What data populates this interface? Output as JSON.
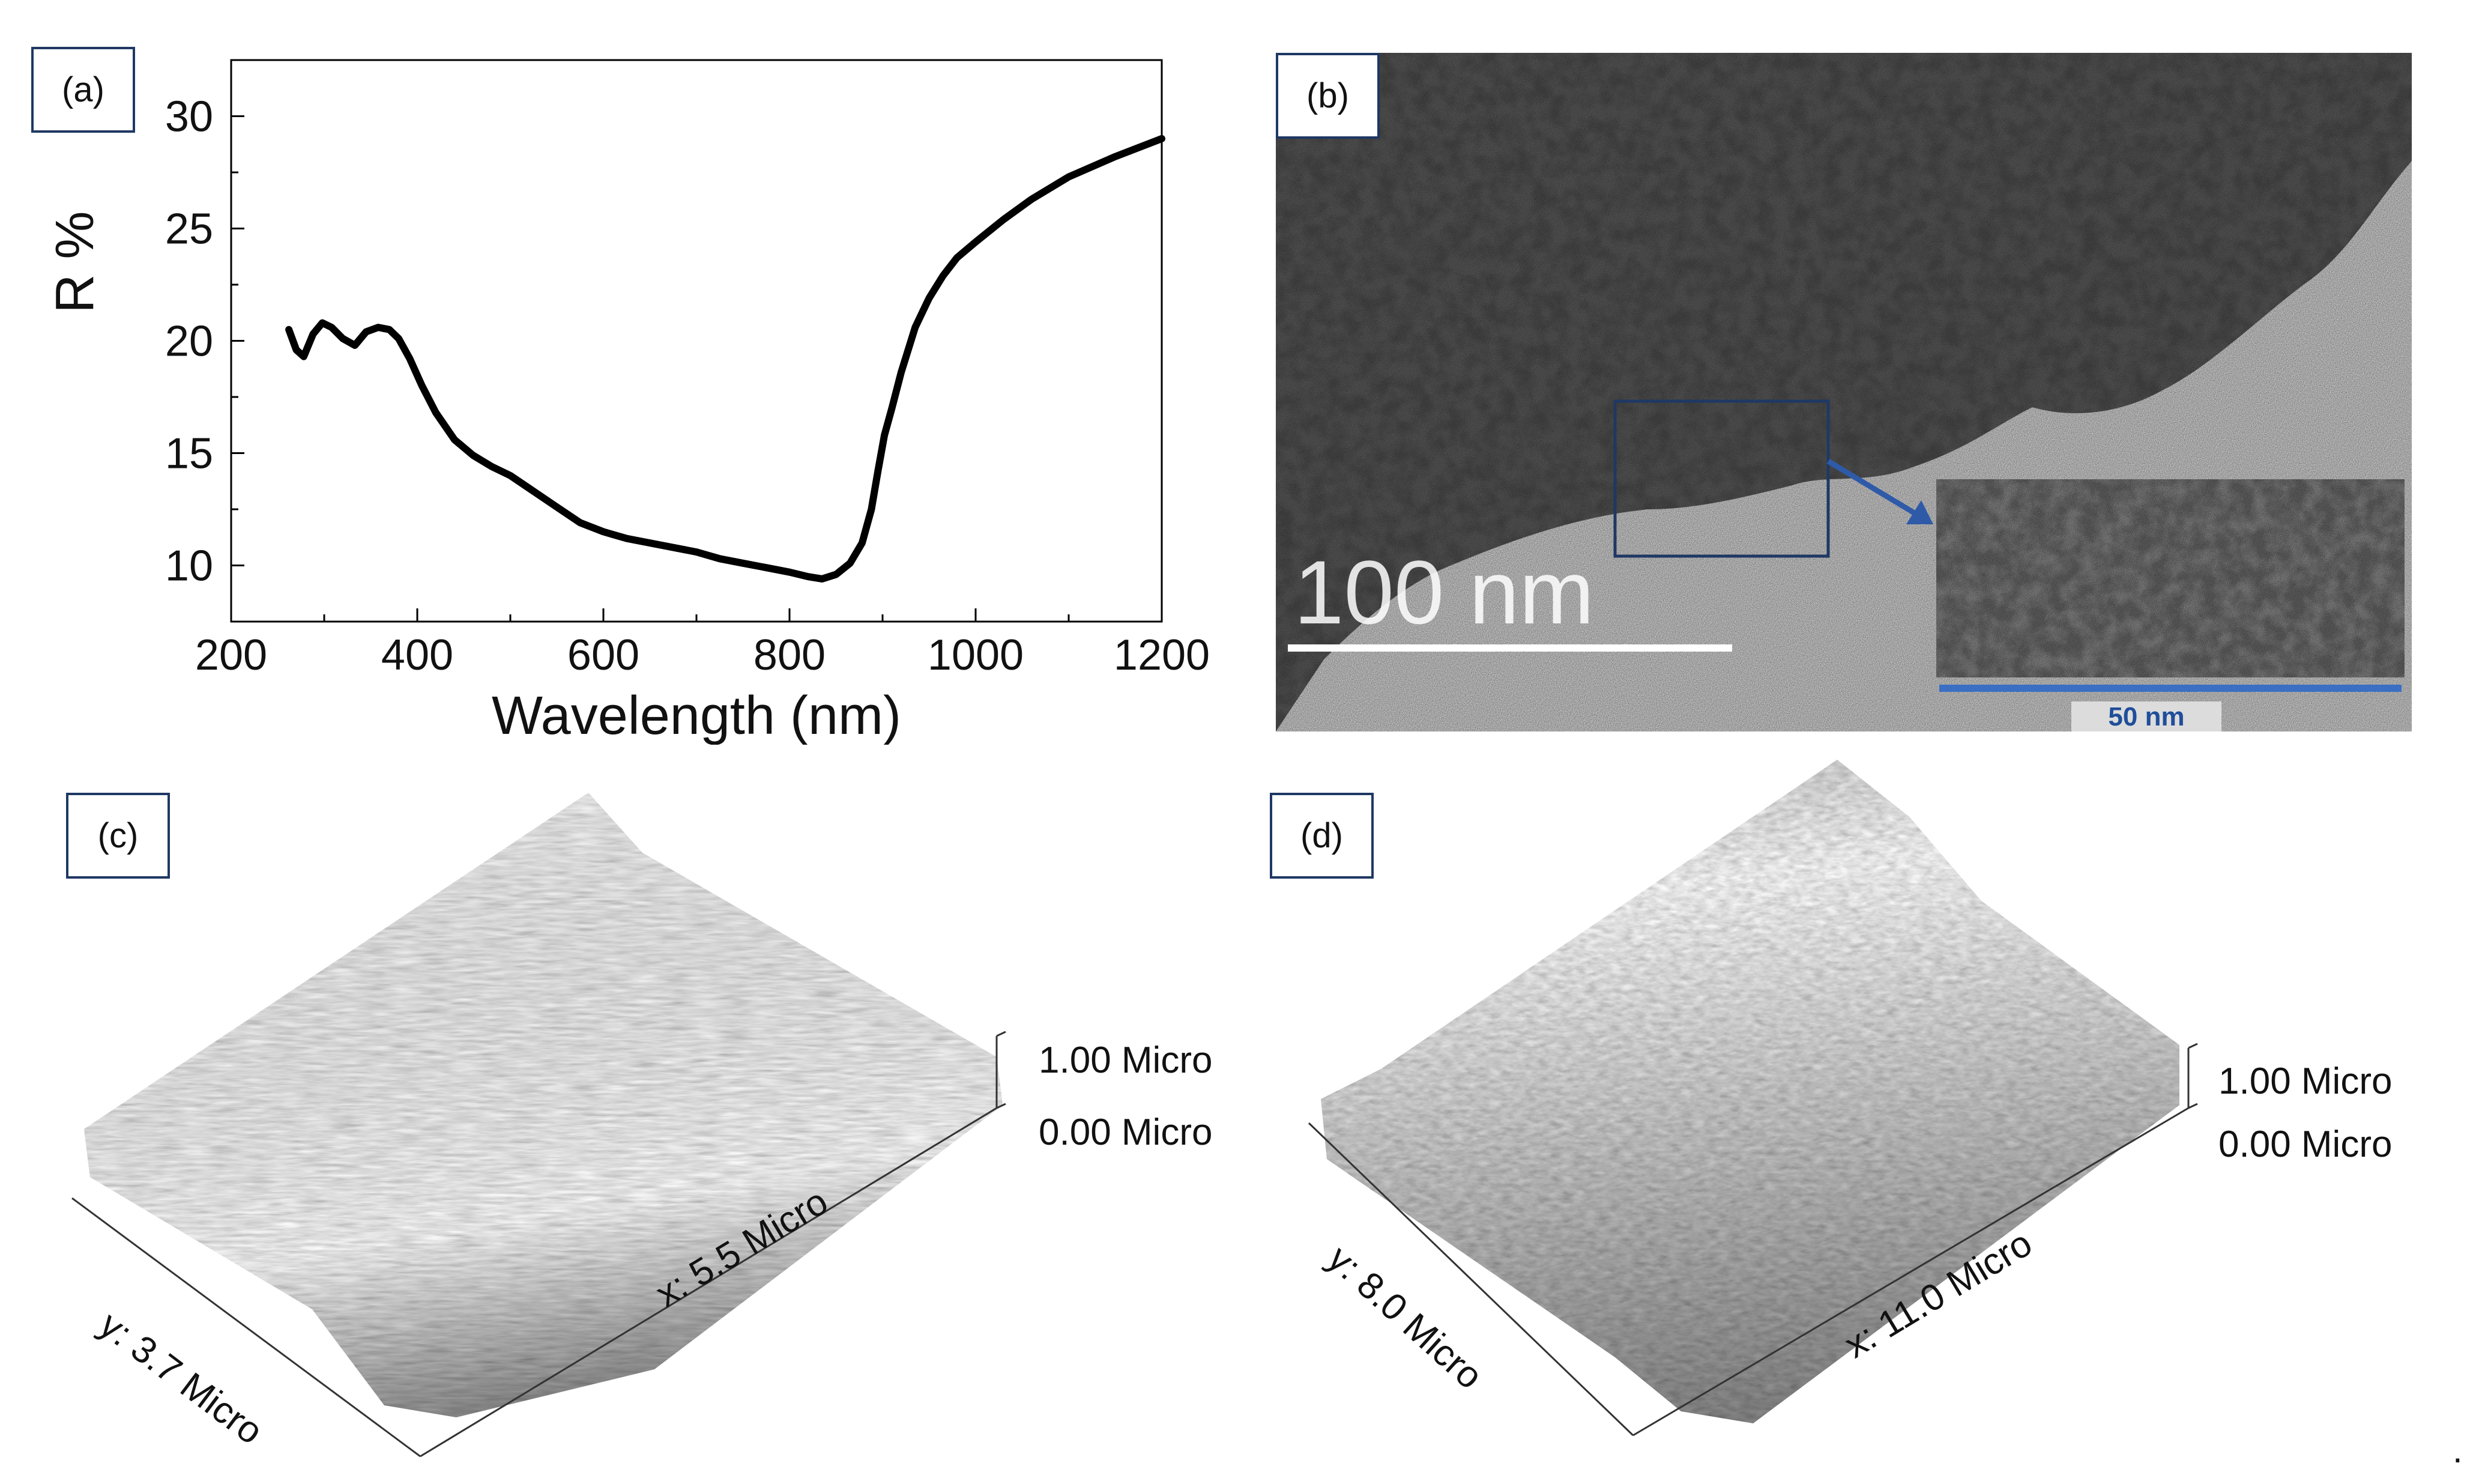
{
  "panels": {
    "a": {
      "tag": "(a)"
    },
    "b": {
      "tag": "(b)",
      "scale_main": "100 nm",
      "scale_inset": "50 nm"
    },
    "c": {
      "tag": "(c)",
      "z_top": "1.00 Micro",
      "z_bottom": "0.00 Micro",
      "x_axis": "x: 5.5 Micro",
      "y_axis": "y: 3.7 Micro"
    },
    "d": {
      "tag": "(d)",
      "z_top": "1.00 Micro",
      "z_bottom": "0.00 Micro",
      "x_axis": "x: 11.0 Micro",
      "y_axis": "y: 8.0 Micro"
    }
  },
  "trailing_mark": ".",
  "chart_data": {
    "type": "line",
    "xlabel": "Wavelength (nm)",
    "ylabel": "R %",
    "xlim": [
      200,
      1200
    ],
    "ylim": [
      7.5,
      32.5
    ],
    "xticks": [
      200,
      400,
      600,
      800,
      1000,
      1200
    ],
    "yticks": [
      10,
      15,
      20,
      25,
      30
    ],
    "grid": false,
    "series": [
      {
        "color": "#000000",
        "x": [
          262,
          270,
          278,
          288,
          298,
          308,
          320,
          333,
          345,
          358,
          370,
          380,
          392,
          405,
          420,
          440,
          460,
          480,
          500,
          525,
          550,
          575,
          600,
          625,
          650,
          675,
          700,
          725,
          750,
          775,
          800,
          820,
          835,
          850,
          865,
          878,
          888,
          895,
          902,
          910,
          920,
          935,
          950,
          965,
          980,
          1000,
          1030,
          1060,
          1100,
          1150,
          1200
        ],
        "y": [
          20.5,
          19.6,
          19.3,
          20.3,
          20.8,
          20.6,
          20.1,
          19.8,
          20.4,
          20.6,
          20.5,
          20.1,
          19.2,
          18.0,
          16.8,
          15.6,
          14.9,
          14.4,
          14.0,
          13.3,
          12.6,
          11.9,
          11.5,
          11.2,
          11.0,
          10.8,
          10.6,
          10.3,
          10.1,
          9.9,
          9.7,
          9.5,
          9.4,
          9.6,
          10.1,
          11.0,
          12.5,
          14.2,
          15.8,
          17.0,
          18.6,
          20.6,
          21.9,
          22.9,
          23.7,
          24.4,
          25.4,
          26.3,
          27.3,
          28.2,
          29.0
        ]
      }
    ]
  }
}
